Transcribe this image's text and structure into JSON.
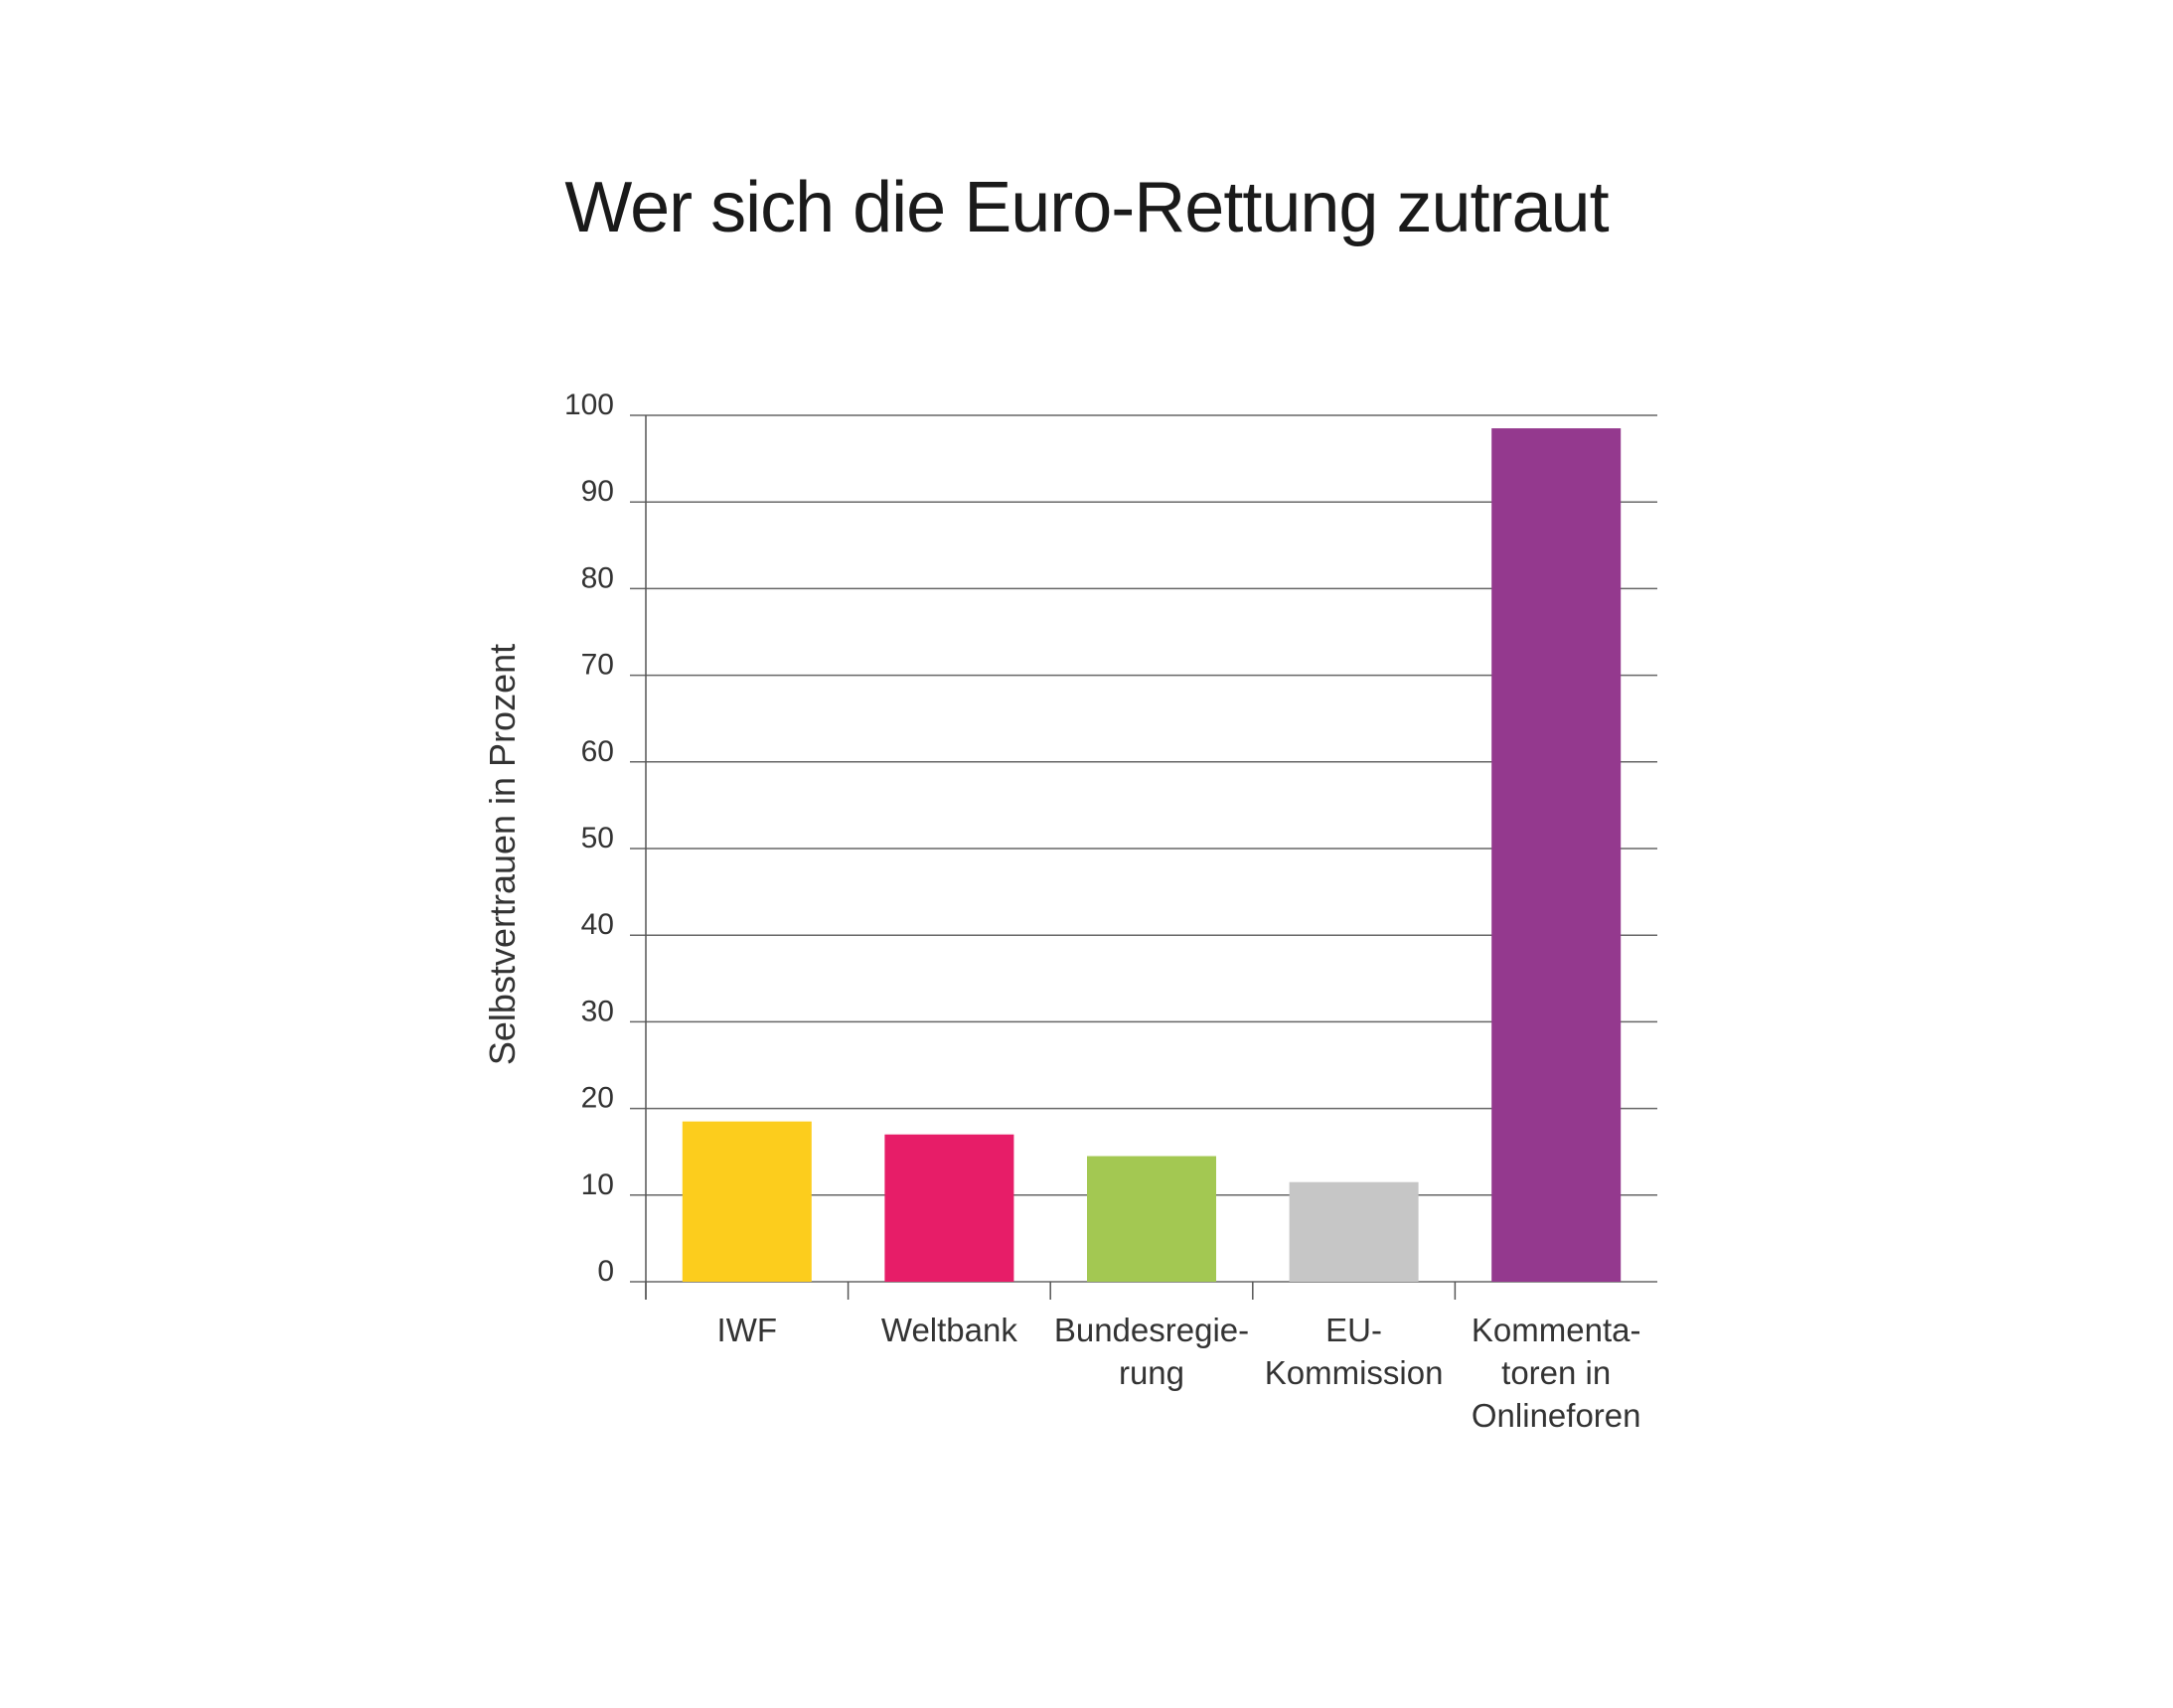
{
  "chart_data": {
    "type": "bar",
    "title": "Wer sich die Euro-Rettung zutraut",
    "xlabel": "",
    "ylabel": "Selbstvertrauen in Prozent",
    "ylim": [
      0,
      100
    ],
    "yticks": [
      "0",
      "10",
      "20",
      "30",
      "40",
      "50",
      "60",
      "70",
      "80",
      "90",
      "100"
    ],
    "grid": true,
    "categories": [
      [
        "IWF"
      ],
      [
        "Weltbank"
      ],
      [
        "Bundesregie-",
        "rung"
      ],
      [
        "EU-",
        "Kommission"
      ],
      [
        "Kommenta-",
        "toren in",
        "Onlineforen"
      ]
    ],
    "values": [
      18.5,
      17,
      14.5,
      11.5,
      98.5
    ],
    "colors": [
      "#FCCD1D",
      "#E71D68",
      "#A3C852",
      "#C6C6C6",
      "#94398E"
    ]
  }
}
